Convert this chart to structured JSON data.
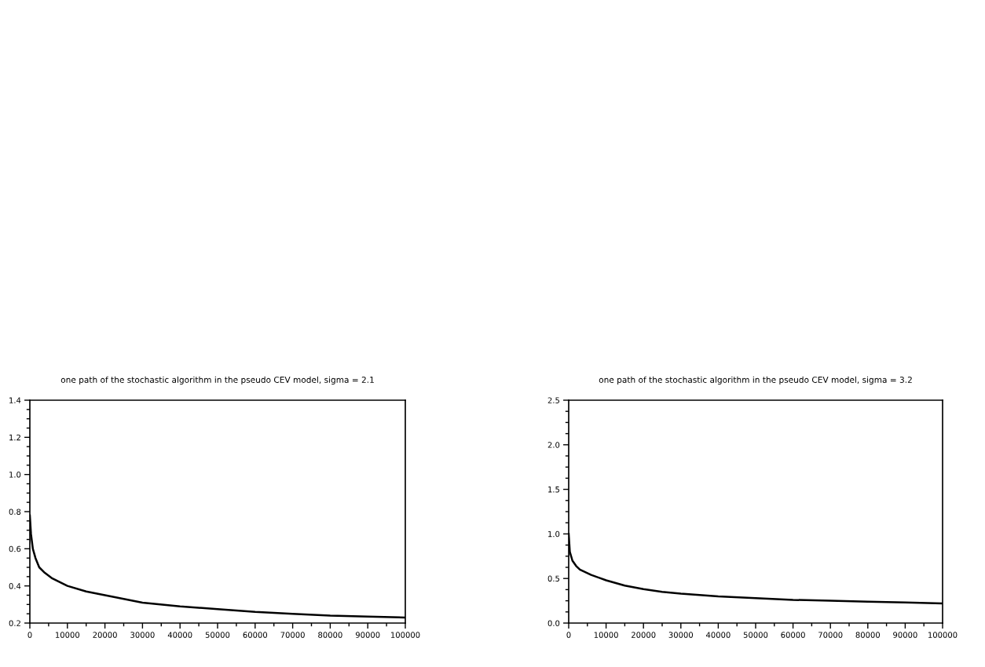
{
  "chart_data": [
    {
      "type": "line",
      "title": "one path of the stochastic algorithm in the pseudo CEV model, sigma = 2.1",
      "series": [
        {
          "color": "#000000",
          "x": [
            0,
            300,
            800,
            1500,
            2500,
            4000,
            6000,
            10000,
            15000,
            20000,
            25000,
            30000,
            40000,
            50000,
            60000,
            70000,
            80000,
            90000,
            100000
          ],
          "values": [
            0.78,
            0.68,
            0.6,
            0.55,
            0.5,
            0.47,
            0.44,
            0.4,
            0.37,
            0.35,
            0.33,
            0.31,
            0.29,
            0.275,
            0.26,
            0.25,
            0.24,
            0.235,
            0.23
          ]
        }
      ],
      "xlim": [
        0,
        100000
      ],
      "xticks": [
        0,
        10000,
        20000,
        30000,
        40000,
        50000,
        60000,
        70000,
        80000,
        90000,
        100000
      ],
      "ylim": [
        0.2,
        1.4
      ],
      "yticks": [
        0.2,
        0.4,
        0.6,
        0.8,
        {
          "value": 1.0,
          "label": "1.0"
        },
        1.2,
        1.4
      ],
      "grid": false,
      "legend": false,
      "marker": "none",
      "line_style": "solid"
    },
    {
      "type": "line",
      "title": "one path of the stochastic algorithm in the pseudo CEV model, sigma = 3.2",
      "series": [
        {
          "color": "#000000",
          "x": [
            0,
            300,
            1000,
            2000,
            3000,
            6000,
            10000,
            15000,
            20000,
            25000,
            30000,
            40000,
            50000,
            60000,
            70000,
            80000,
            90000,
            100000
          ],
          "values": [
            1.0,
            0.8,
            0.7,
            0.64,
            0.6,
            0.54,
            0.48,
            0.42,
            0.38,
            0.35,
            0.33,
            0.3,
            0.28,
            0.26,
            0.25,
            0.24,
            0.23,
            0.22
          ]
        }
      ],
      "xlim": [
        0,
        100000
      ],
      "xticks": [
        0,
        10000,
        20000,
        30000,
        40000,
        50000,
        60000,
        70000,
        80000,
        90000,
        100000
      ],
      "ylim": [
        0.0,
        2.5
      ],
      "yticks": [
        {
          "value": 0.0,
          "label": "0.0"
        },
        0.5,
        {
          "value": 1.0,
          "label": "1.0"
        },
        1.5,
        {
          "value": 2.0,
          "label": "2.0"
        },
        2.5
      ],
      "grid": false,
      "legend": false,
      "marker": "none",
      "line_style": "solid"
    }
  ]
}
